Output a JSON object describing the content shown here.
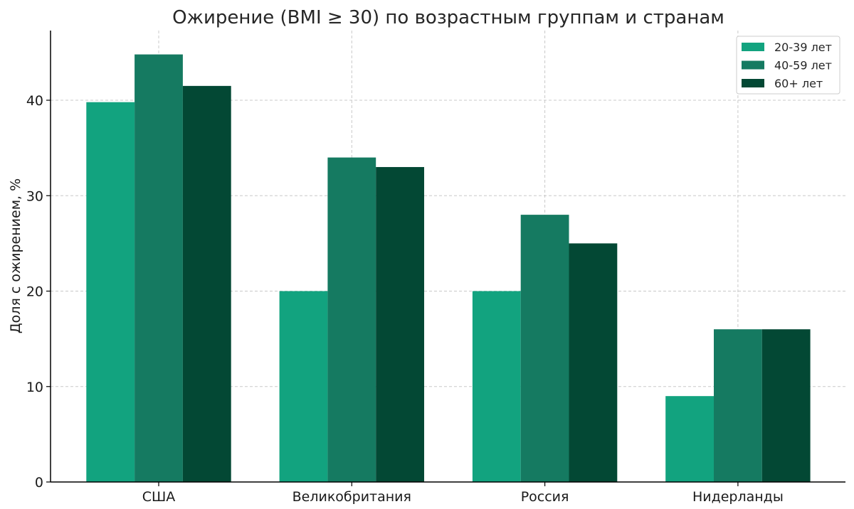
{
  "chart_data": {
    "type": "bar",
    "title": "Ожирение (BMI ≥ 30) по возрастным группам и странам",
    "xlabel": "",
    "ylabel": "Доля с ожирением, %",
    "categories": [
      "США",
      "Великобритания",
      "Россия",
      "Нидерланды"
    ],
    "series": [
      {
        "name": "20-39 лет",
        "values": [
          39.8,
          20,
          20,
          9
        ],
        "color": "#12a37f"
      },
      {
        "name": "40-59 лет",
        "values": [
          44.8,
          34,
          28,
          16
        ],
        "color": "#157a61"
      },
      {
        "name": "60+ лет",
        "values": [
          41.5,
          33,
          25,
          16
        ],
        "color": "#034834"
      }
    ],
    "ylim": [
      0,
      47.3
    ],
    "yticks": [
      0,
      10,
      20,
      30,
      40
    ],
    "grid": true,
    "legend_position": "top-right"
  }
}
